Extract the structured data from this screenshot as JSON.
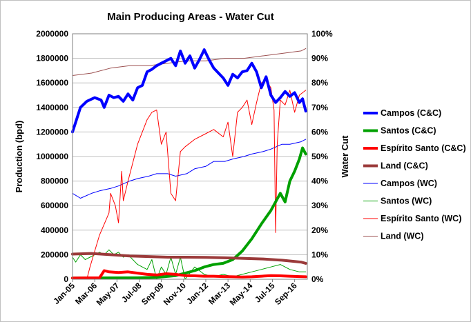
{
  "chart_data": {
    "type": "line",
    "title": "Main Producing Areas - Water Cut",
    "ylabel_left": "Production (bpd)",
    "ylabel_right": "Water Cut",
    "ylim_left": [
      0,
      2000000
    ],
    "ylim_right": [
      0,
      1
    ],
    "yticks_left": [
      "0",
      "200000",
      "400000",
      "600000",
      "800000",
      "1000000",
      "1200000",
      "1400000",
      "1600000",
      "1800000",
      "2000000"
    ],
    "yticks_right": [
      "0%",
      "10%",
      "20%",
      "30%",
      "40%",
      "50%",
      "60%",
      "70%",
      "80%",
      "90%",
      "100%"
    ],
    "x_categories": [
      "Jan-05",
      "Mar-06",
      "May-07",
      "Jul-08",
      "Sep-09",
      "Nov-10",
      "Jan-12",
      "Mar-13",
      "May-14",
      "Jul-15",
      "Sep-16"
    ],
    "x_range": [
      "Jan-05",
      "May-17"
    ],
    "grid": "horizontal",
    "legend_position": "right",
    "series": [
      {
        "name": "Campos (C&C)",
        "axis": "left",
        "color": "#0000ff",
        "width": 4,
        "points": [
          [
            "Jan-05",
            1200000
          ],
          [
            "Mar-05",
            1280000
          ],
          [
            "Jun-05",
            1400000
          ],
          [
            "Oct-05",
            1450000
          ],
          [
            "Mar-06",
            1480000
          ],
          [
            "Jul-06",
            1460000
          ],
          [
            "Sep-06",
            1400000
          ],
          [
            "Dec-06",
            1500000
          ],
          [
            "Mar-07",
            1480000
          ],
          [
            "Jun-07",
            1490000
          ],
          [
            "Sep-07",
            1450000
          ],
          [
            "Dec-07",
            1510000
          ],
          [
            "Mar-08",
            1460000
          ],
          [
            "Jun-08",
            1560000
          ],
          [
            "Sep-08",
            1580000
          ],
          [
            "Dec-08",
            1690000
          ],
          [
            "Mar-09",
            1710000
          ],
          [
            "Jun-09",
            1740000
          ],
          [
            "Sep-09",
            1760000
          ],
          [
            "Dec-09",
            1780000
          ],
          [
            "Mar-10",
            1800000
          ],
          [
            "Jun-10",
            1740000
          ],
          [
            "Sep-10",
            1860000
          ],
          [
            "Dec-10",
            1760000
          ],
          [
            "Mar-11",
            1820000
          ],
          [
            "Jun-11",
            1720000
          ],
          [
            "Sep-11",
            1790000
          ],
          [
            "Dec-11",
            1870000
          ],
          [
            "Mar-12",
            1790000
          ],
          [
            "Jun-12",
            1720000
          ],
          [
            "Sep-12",
            1680000
          ],
          [
            "Dec-12",
            1640000
          ],
          [
            "Mar-13",
            1580000
          ],
          [
            "Jun-13",
            1670000
          ],
          [
            "Sep-13",
            1640000
          ],
          [
            "Dec-13",
            1690000
          ],
          [
            "Mar-14",
            1700000
          ],
          [
            "Jun-14",
            1760000
          ],
          [
            "Sep-14",
            1690000
          ],
          [
            "Dec-14",
            1560000
          ],
          [
            "Mar-15",
            1650000
          ],
          [
            "Jun-15",
            1500000
          ],
          [
            "Sep-15",
            1440000
          ],
          [
            "Dec-15",
            1480000
          ],
          [
            "Mar-16",
            1530000
          ],
          [
            "Jun-16",
            1490000
          ],
          [
            "Sep-16",
            1520000
          ],
          [
            "Dec-16",
            1440000
          ],
          [
            "Feb-17",
            1470000
          ],
          [
            "Apr-17",
            1370000
          ]
        ]
      },
      {
        "name": "Santos (C&C)",
        "axis": "left",
        "color": "#00a000",
        "width": 4,
        "points": [
          [
            "Jan-05",
            10000
          ],
          [
            "Jun-08",
            12000
          ],
          [
            "Jun-09",
            15000
          ],
          [
            "Jun-10",
            30000
          ],
          [
            "Jun-11",
            70000
          ],
          [
            "Dec-11",
            100000
          ],
          [
            "Jun-12",
            120000
          ],
          [
            "Dec-12",
            130000
          ],
          [
            "Jun-13",
            160000
          ],
          [
            "Dec-13",
            230000
          ],
          [
            "Jun-14",
            330000
          ],
          [
            "Dec-14",
            450000
          ],
          [
            "Jun-15",
            560000
          ],
          [
            "Dec-15",
            700000
          ],
          [
            "Mar-16",
            630000
          ],
          [
            "Jun-16",
            800000
          ],
          [
            "Sep-16",
            880000
          ],
          [
            "Dec-16",
            980000
          ],
          [
            "Feb-17",
            1070000
          ],
          [
            "Apr-17",
            1020000
          ]
        ]
      },
      {
        "name": "Espírito Santo (C&C)",
        "axis": "left",
        "color": "#ff0000",
        "width": 4,
        "points": [
          [
            "Jan-05",
            10000
          ],
          [
            "Jun-06",
            12000
          ],
          [
            "Sep-06",
            70000
          ],
          [
            "Dec-06",
            60000
          ],
          [
            "Jun-07",
            55000
          ],
          [
            "Dec-07",
            60000
          ],
          [
            "Jun-08",
            50000
          ],
          [
            "Dec-08",
            40000
          ],
          [
            "Jun-09",
            35000
          ],
          [
            "Dec-09",
            45000
          ],
          [
            "Jun-10",
            40000
          ],
          [
            "Dec-10",
            30000
          ],
          [
            "Jun-11",
            28000
          ],
          [
            "Dec-11",
            25000
          ],
          [
            "Jun-12",
            25000
          ],
          [
            "Dec-12",
            22000
          ],
          [
            "Jun-13",
            20000
          ],
          [
            "Dec-13",
            18000
          ],
          [
            "Jun-14",
            20000
          ],
          [
            "Dec-14",
            25000
          ],
          [
            "Jun-15",
            30000
          ],
          [
            "Dec-15",
            28000
          ],
          [
            "Jun-16",
            25000
          ],
          [
            "Dec-16",
            22000
          ],
          [
            "Apr-17",
            20000
          ]
        ]
      },
      {
        "name": "Land (C&C)",
        "axis": "left",
        "color": "#9b3a3a",
        "width": 4,
        "points": [
          [
            "Jan-05",
            205000
          ],
          [
            "Jan-06",
            210000
          ],
          [
            "Jan-07",
            200000
          ],
          [
            "Jan-08",
            190000
          ],
          [
            "Jan-09",
            185000
          ],
          [
            "Jan-10",
            180000
          ],
          [
            "Jan-11",
            180000
          ],
          [
            "Jan-12",
            178000
          ],
          [
            "Jan-13",
            175000
          ],
          [
            "Jan-14",
            170000
          ],
          [
            "Jan-15",
            165000
          ],
          [
            "Jan-16",
            155000
          ],
          [
            "Jan-17",
            140000
          ],
          [
            "Apr-17",
            130000
          ]
        ]
      },
      {
        "name": "Campos (WC)",
        "axis": "right",
        "color": "#0000ff",
        "width": 1,
        "points": [
          [
            "Jan-05",
            0.35
          ],
          [
            "Jun-05",
            0.33
          ],
          [
            "Jan-06",
            0.35
          ],
          [
            "Jun-06",
            0.36
          ],
          [
            "Jan-07",
            0.37
          ],
          [
            "Jun-07",
            0.38
          ],
          [
            "Jan-08",
            0.4
          ],
          [
            "Jun-08",
            0.41
          ],
          [
            "Jan-09",
            0.42
          ],
          [
            "Jun-09",
            0.43
          ],
          [
            "Jan-10",
            0.43
          ],
          [
            "Jun-10",
            0.42
          ],
          [
            "Jan-11",
            0.43
          ],
          [
            "Jun-11",
            0.45
          ],
          [
            "Jan-12",
            0.46
          ],
          [
            "Jun-12",
            0.48
          ],
          [
            "Jan-13",
            0.48
          ],
          [
            "Jun-13",
            0.49
          ],
          [
            "Jan-14",
            0.5
          ],
          [
            "Jun-14",
            0.51
          ],
          [
            "Jan-15",
            0.52
          ],
          [
            "Jun-15",
            0.53
          ],
          [
            "Jan-16",
            0.55
          ],
          [
            "Jun-16",
            0.55
          ],
          [
            "Jan-17",
            0.56
          ],
          [
            "Apr-17",
            0.57
          ]
        ]
      },
      {
        "name": "Santos (WC)",
        "axis": "right",
        "color": "#00a000",
        "width": 1,
        "points": [
          [
            "Jan-05",
            0.09
          ],
          [
            "Mar-05",
            0.07
          ],
          [
            "Jun-05",
            0.1
          ],
          [
            "Sep-05",
            0.08
          ],
          [
            "Dec-05",
            0.09
          ],
          [
            "Mar-06",
            0.1
          ],
          [
            "Jun-06",
            0.11
          ],
          [
            "Sep-06",
            0.1
          ],
          [
            "Dec-06",
            0.12
          ],
          [
            "Mar-07",
            0.1
          ],
          [
            "Jun-07",
            0.11
          ],
          [
            "Sep-07",
            0.09
          ],
          [
            "Dec-07",
            0.1
          ],
          [
            "Jun-08",
            0.06
          ],
          [
            "Dec-08",
            0.04
          ],
          [
            "Mar-09",
            0.08
          ],
          [
            "Jun-09",
            0.0
          ],
          [
            "Sep-09",
            0.05
          ],
          [
            "Dec-09",
            0.02
          ],
          [
            "Mar-10",
            0.09
          ],
          [
            "Jun-10",
            0.02
          ],
          [
            "Sep-10",
            0.09
          ],
          [
            "Dec-10",
            0.0
          ],
          [
            "Jun-11",
            0.05
          ],
          [
            "Dec-11",
            0.02
          ],
          [
            "Jun-12",
            0.01
          ],
          [
            "Dec-12",
            0.02
          ],
          [
            "Jun-13",
            0.01
          ],
          [
            "Dec-13",
            0.02
          ],
          [
            "Jun-14",
            0.03
          ],
          [
            "Dec-14",
            0.04
          ],
          [
            "Jun-15",
            0.05
          ],
          [
            "Dec-15",
            0.06
          ],
          [
            "Jun-16",
            0.04
          ],
          [
            "Dec-16",
            0.03
          ],
          [
            "Apr-17",
            0.03
          ]
        ]
      },
      {
        "name": "Espírito Santo (WC)",
        "axis": "right",
        "color": "#ff0000",
        "width": 1,
        "points": [
          [
            "Jan-05",
            0.0
          ],
          [
            "Oct-05",
            0.0
          ],
          [
            "Dec-05",
            0.05
          ],
          [
            "Jun-06",
            0.18
          ],
          [
            "Dec-06",
            0.27
          ],
          [
            "Jan-07",
            0.35
          ],
          [
            "Apr-07",
            0.3
          ],
          [
            "Jun-07",
            0.23
          ],
          [
            "Aug-07",
            0.44
          ],
          [
            "Sep-07",
            0.32
          ],
          [
            "Dec-07",
            0.4
          ],
          [
            "Jun-08",
            0.55
          ],
          [
            "Dec-08",
            0.65
          ],
          [
            "Mar-09",
            0.68
          ],
          [
            "Jun-09",
            0.69
          ],
          [
            "Sep-09",
            0.55
          ],
          [
            "Dec-09",
            0.6
          ],
          [
            "Mar-10",
            0.35
          ],
          [
            "Jun-10",
            0.32
          ],
          [
            "Sep-10",
            0.52
          ],
          [
            "Dec-10",
            0.54
          ],
          [
            "Jun-11",
            0.57
          ],
          [
            "Dec-11",
            0.59
          ],
          [
            "Jun-12",
            0.61
          ],
          [
            "Dec-12",
            0.58
          ],
          [
            "Mar-13",
            0.64
          ],
          [
            "Jun-13",
            0.5
          ],
          [
            "Sep-13",
            0.68
          ],
          [
            "Dec-13",
            0.7
          ],
          [
            "Mar-14",
            0.73
          ],
          [
            "Jun-14",
            0.63
          ],
          [
            "Sep-14",
            0.72
          ],
          [
            "Dec-14",
            0.8
          ],
          [
            "Mar-15",
            0.81
          ],
          [
            "Jun-15",
            0.78
          ],
          [
            "Aug-15",
            0.69
          ],
          [
            "Sep-15",
            0.19
          ],
          [
            "Oct-15",
            0.55
          ],
          [
            "Dec-15",
            0.73
          ],
          [
            "Mar-16",
            0.71
          ],
          [
            "Jun-16",
            0.77
          ],
          [
            "Sep-16",
            0.68
          ],
          [
            "Dec-16",
            0.75
          ],
          [
            "Apr-17",
            0.77
          ]
        ]
      },
      {
        "name": "Land (WC)",
        "axis": "right",
        "color": "#9b4f4f",
        "width": 1,
        "points": [
          [
            "Jan-05",
            0.83
          ],
          [
            "Jan-06",
            0.84
          ],
          [
            "Jan-07",
            0.86
          ],
          [
            "Jan-08",
            0.87
          ],
          [
            "Jan-09",
            0.87
          ],
          [
            "Jan-10",
            0.88
          ],
          [
            "Jan-11",
            0.89
          ],
          [
            "Jan-12",
            0.89
          ],
          [
            "Jan-13",
            0.9
          ],
          [
            "Jan-14",
            0.9
          ],
          [
            "Jan-15",
            0.91
          ],
          [
            "Jan-16",
            0.92
          ],
          [
            "Jan-17",
            0.93
          ],
          [
            "Apr-17",
            0.94
          ]
        ]
      }
    ]
  }
}
